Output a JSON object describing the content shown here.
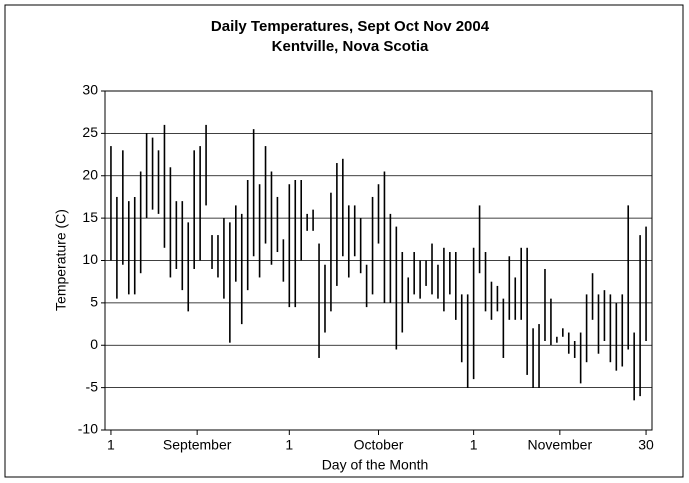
{
  "chart_data": {
    "type": "range",
    "title": "Daily Temperatures, Sept Oct Nov 2004",
    "subtitle": "Kentville, Nova Scotia",
    "y_label": "Temperature (C)",
    "x_label": "Day of the Month",
    "x": [
      1,
      2,
      3,
      4,
      5,
      6,
      7,
      8,
      9,
      10,
      11,
      12,
      13,
      14,
      15,
      16,
      17,
      18,
      19,
      20,
      21,
      22,
      23,
      24,
      25,
      26,
      27,
      28,
      29,
      30,
      31,
      32,
      33,
      34,
      35,
      36,
      37,
      38,
      39,
      40,
      41,
      42,
      43,
      44,
      45,
      46,
      47,
      48,
      49,
      50,
      51,
      52,
      53,
      54,
      55,
      56,
      57,
      58,
      59,
      60,
      61,
      62,
      63,
      64,
      65,
      66,
      67,
      68,
      69,
      70,
      71,
      72,
      73,
      74,
      75,
      76,
      77,
      78,
      79,
      80,
      81,
      82,
      83,
      84,
      85,
      86,
      87,
      88,
      89,
      90,
      91
    ],
    "series": [
      {
        "color": "#000000",
        "values": [
          23.5,
          17.5,
          23,
          17,
          17.5,
          20.5,
          25,
          24.5,
          23,
          26,
          21,
          17,
          17,
          14.5,
          23,
          23.5,
          26,
          13,
          13,
          15,
          14.5,
          16.5,
          15.5,
          19.5,
          25.5,
          19,
          23.5,
          20.5,
          17.5,
          12.5,
          19,
          19.5,
          19.5,
          15.5,
          16,
          12,
          9.5,
          18,
          21.5,
          22,
          16.5,
          16.5,
          15,
          9.5,
          17.5,
          19,
          20.5,
          15.5,
          14,
          11,
          8,
          11,
          10,
          10,
          12,
          9.5,
          11.5,
          11,
          11,
          6,
          6,
          11.5,
          16.5,
          11,
          7.5,
          7,
          5.5,
          10.5,
          8,
          11.5,
          11.5,
          2,
          2.5,
          9,
          5.5,
          1,
          2,
          1.5,
          0.5,
          1.5,
          6,
          8.5,
          6,
          6.5,
          6,
          5,
          6,
          16.5,
          1.5,
          13,
          14
        ]
      },
      {
        "color": "#000000",
        "values": [
          10,
          5.5,
          9.5,
          6,
          6,
          8.5,
          15,
          16,
          15.5,
          11.5,
          8,
          9,
          6.5,
          4,
          9,
          10,
          16.5,
          9,
          8,
          5.5,
          0.3,
          7.5,
          2.5,
          6.5,
          10.5,
          8,
          12,
          9.5,
          11,
          7.5,
          4.5,
          4.5,
          10,
          13.5,
          13.5,
          -1.5,
          1.5,
          4,
          7,
          10.5,
          8,
          10.5,
          8.5,
          4.5,
          6,
          12,
          5,
          5,
          -0.5,
          1.5,
          5,
          6,
          5.5,
          7,
          6,
          5.5,
          4,
          6,
          3,
          -2,
          -5,
          -4,
          8.5,
          4,
          3,
          4,
          -1.5,
          3,
          3,
          3,
          -3.5,
          -5,
          -5,
          0.5,
          0,
          0.3,
          1,
          -1,
          -1.5,
          -4.5,
          -2,
          3,
          -1,
          0.5,
          -2,
          -3,
          -2.5,
          -0.5,
          -6.5,
          -6,
          0.5
        ]
      }
    ],
    "xlim": [
      0,
      92
    ],
    "xticks": [
      1,
      {
        "value": 15.5,
        "label": "September"
      },
      {
        "value": 31,
        "label": "1"
      },
      {
        "value": 46,
        "label": "October"
      },
      {
        "value": 62,
        "label": "1"
      },
      {
        "value": 76.5,
        "label": "November"
      },
      {
        "value": 91,
        "label": "30"
      }
    ],
    "ylim": [
      -10,
      30
    ],
    "yticks": [
      -10,
      -5,
      0,
      5,
      10,
      15,
      20,
      25,
      30
    ],
    "grid": true
  }
}
